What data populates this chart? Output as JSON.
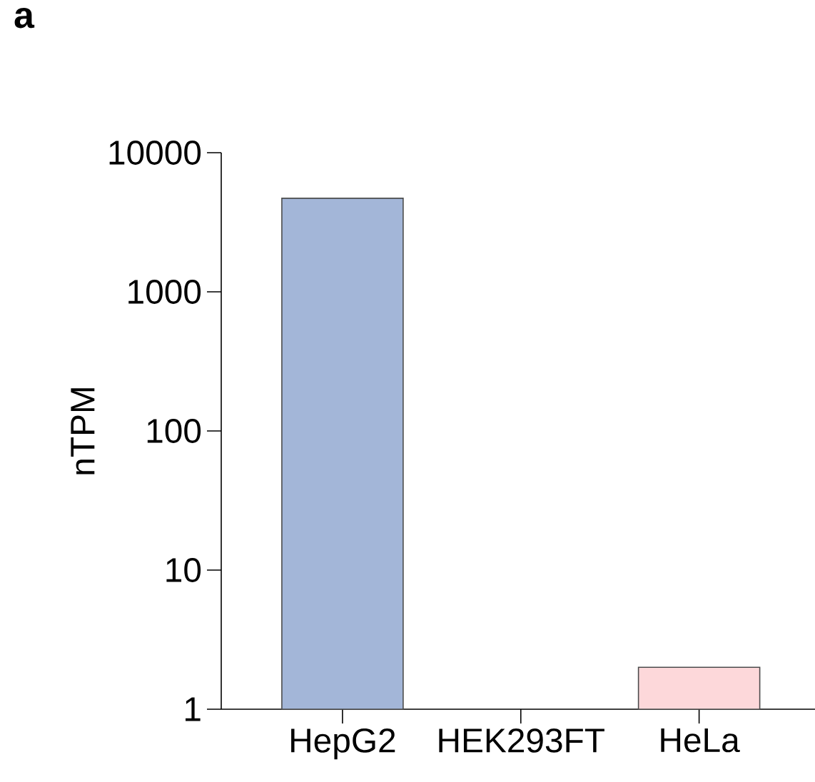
{
  "chart_data": {
    "type": "bar",
    "ylabel": "nTPM",
    "annotations": [
      "**a**"
    ],
    "categories": [
      "HepG2",
      "HEK293FT",
      "HeLa"
    ],
    "values": [
      4700,
      null,
      2.0
    ],
    "colors": [
      "#a3b6d8",
      "#a3b6d8",
      "#fdd8da"
    ],
    "log": true,
    "ylim": [
      1,
      10000
    ],
    "yticks": [
      1,
      10,
      100,
      1000,
      10000
    ],
    "grid": false
  }
}
